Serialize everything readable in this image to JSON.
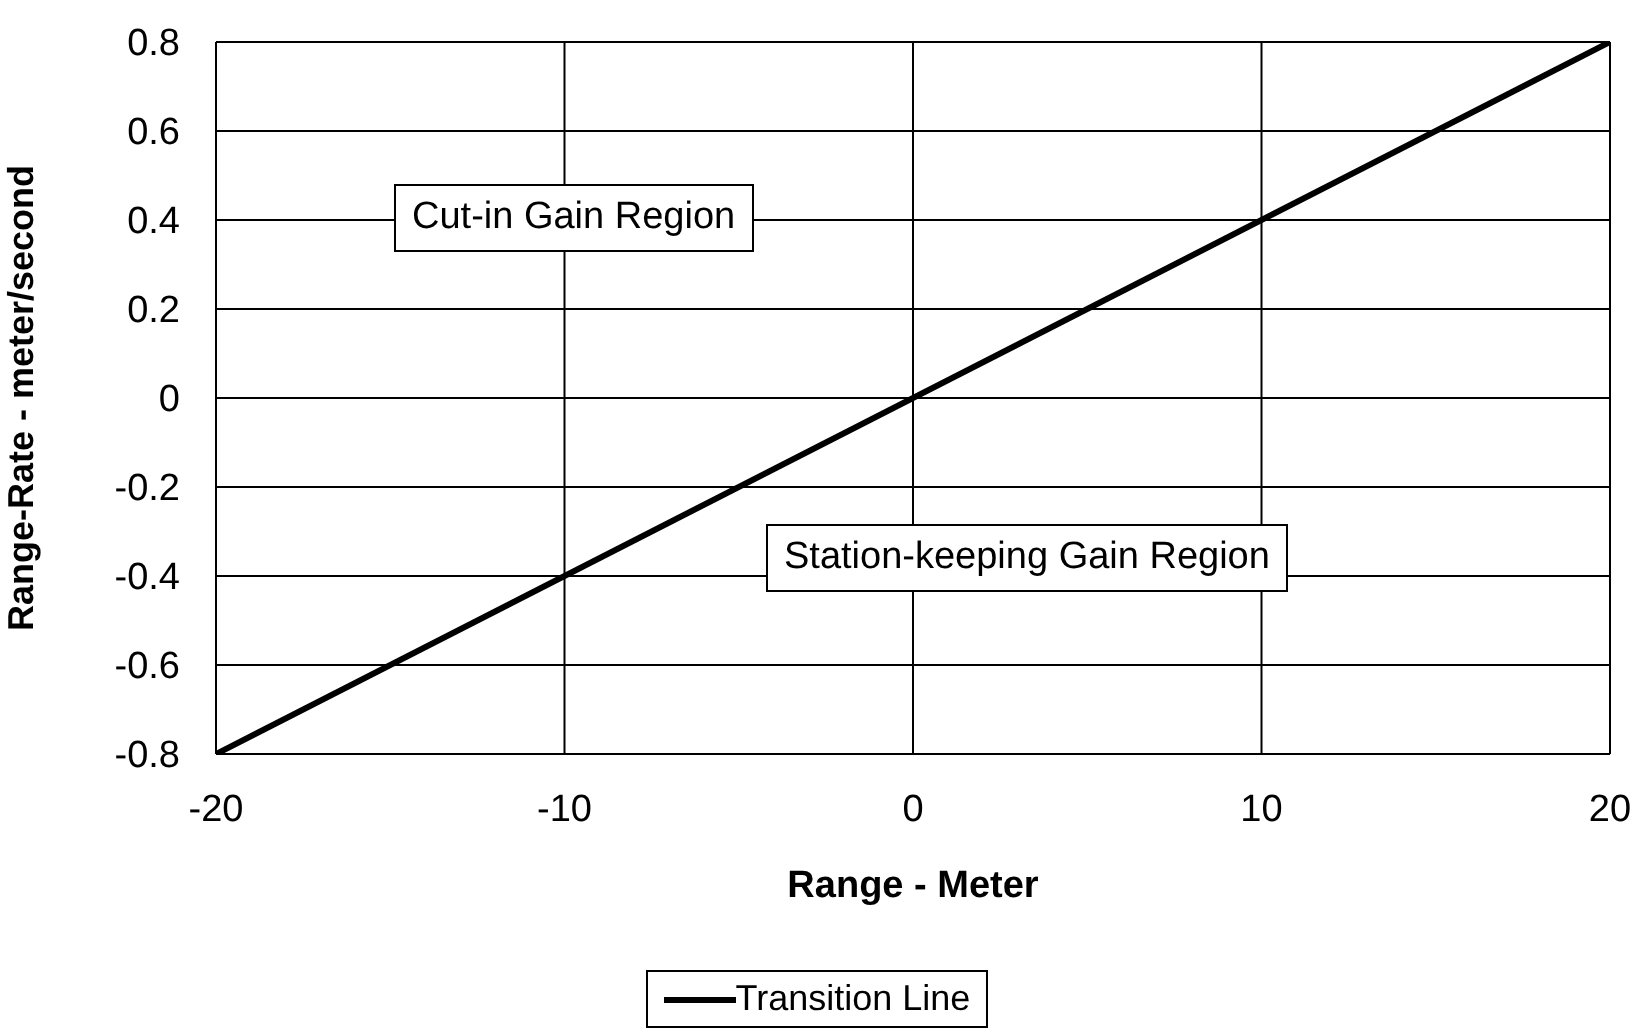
{
  "chart_data": {
    "type": "line",
    "xlabel": "Range - Meter",
    "ylabel": "Range-Rate - meter/second",
    "x": [
      -20,
      20
    ],
    "series": [
      {
        "name": "Transition Line",
        "color": "#000000",
        "values": [
          -0.8,
          0.8
        ]
      }
    ],
    "xlim": [
      -20,
      20
    ],
    "xticks": [
      -20,
      -10,
      0,
      10,
      20
    ],
    "ylim": [
      -0.8,
      0.8
    ],
    "yticks": [
      -0.8,
      -0.6,
      -0.4,
      -0.2,
      0,
      0.2,
      0.4,
      0.6,
      0.8
    ],
    "grid": true,
    "legend": "bottom",
    "marker": "none",
    "line_style": "solid",
    "annotations": [
      "Cut-in Gain Region",
      "Station-keeping Gain Region"
    ]
  }
}
